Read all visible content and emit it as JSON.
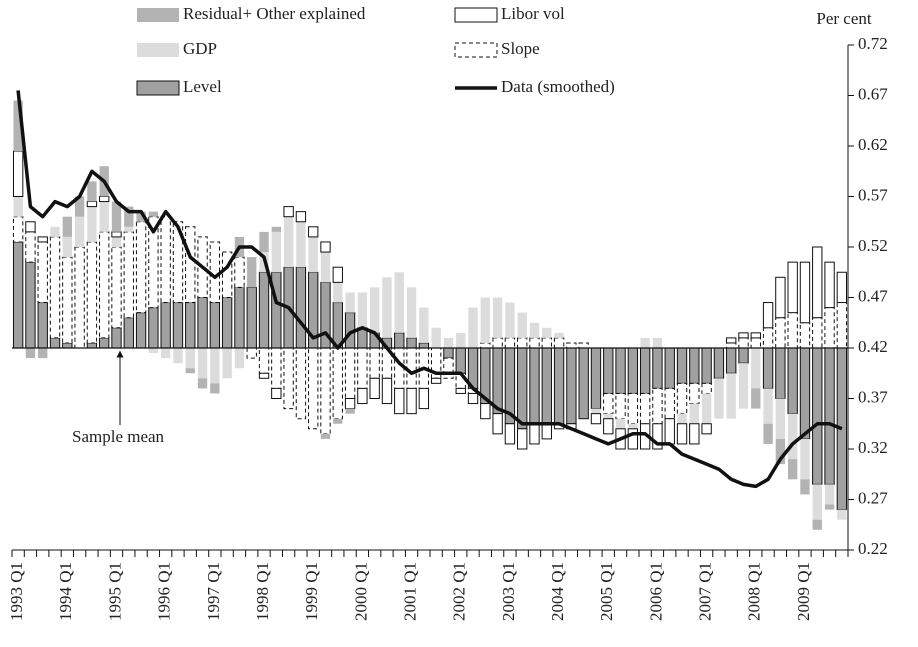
{
  "chart_data": {
    "type": "bar",
    "ylabel": "Per cent",
    "baseline": 0.42,
    "annotations": [
      {
        "text": "Sample mean"
      }
    ],
    "categories": [
      "1993 Q1",
      null,
      null,
      null,
      "1994 Q1",
      null,
      null,
      null,
      "1995 Q1",
      null,
      null,
      null,
      "1996 Q1",
      null,
      null,
      null,
      "1997 Q1",
      null,
      null,
      null,
      "1998 Q1",
      null,
      null,
      null,
      "1999 Q1",
      null,
      null,
      null,
      "2000 Q1",
      null,
      null,
      null,
      "2001 Q1",
      null,
      null,
      null,
      "2002 Q1",
      null,
      null,
      null,
      "2003 Q1",
      null,
      null,
      null,
      "2004 Q1",
      null,
      null,
      null,
      "2005 Q1",
      null,
      null,
      null,
      "2006 Q1",
      null,
      null,
      null,
      "2007 Q1",
      null,
      null,
      null,
      "2008 Q1",
      null,
      null,
      null,
      "2009 Q1",
      null,
      null,
      null
    ],
    "series": [
      {
        "name": "Residual+ Other explained",
        "color": "#b3b3b3",
        "edge": "none",
        "values": [
          0.05,
          -0.01,
          -0.01,
          0,
          0.02,
          0.02,
          0.02,
          0.03,
          0.03,
          0.02,
          0.01,
          0.005,
          0,
          0,
          -0.005,
          -0.01,
          -0.01,
          0,
          0.02,
          0.03,
          0.02,
          0.005,
          0,
          0,
          0,
          -0.005,
          -0.005,
          -0.005,
          0,
          0,
          0,
          0,
          0,
          0,
          0,
          0,
          0,
          0,
          0,
          0,
          0,
          0,
          0,
          0,
          0,
          0,
          0,
          0,
          0,
          0,
          0,
          0,
          0,
          0,
          0,
          0,
          0,
          0,
          0,
          0,
          -0.02,
          -0.02,
          -0.025,
          -0.02,
          -0.015,
          -0.01,
          -0.005,
          0
        ]
      },
      {
        "name": "Libor vol",
        "color": "#ffffff",
        "edge": "solid",
        "values": [
          0.045,
          0.01,
          0.005,
          0,
          0,
          0,
          0.005,
          0.005,
          0.005,
          0,
          0,
          0,
          0,
          0,
          0,
          0,
          0,
          0,
          0,
          0,
          -0.005,
          -0.01,
          0.01,
          0.01,
          0.01,
          0.01,
          0.015,
          -0.01,
          -0.015,
          -0.02,
          -0.025,
          -0.025,
          -0.025,
          -0.02,
          -0.005,
          0,
          -0.005,
          -0.01,
          -0.015,
          -0.02,
          -0.02,
          -0.02,
          -0.02,
          -0.015,
          -0.005,
          -0.005,
          0,
          -0.01,
          -0.015,
          -0.02,
          -0.02,
          -0.025,
          -0.025,
          -0.025,
          -0.02,
          -0.02,
          -0.01,
          0,
          0.005,
          0.005,
          0.005,
          0.025,
          0.04,
          0.05,
          0.06,
          0.07,
          0.045,
          0.03
        ]
      },
      {
        "name": "GDP",
        "color": "#dcdcdc",
        "edge": "none",
        "values": [
          0.02,
          0,
          0,
          0.01,
          0.02,
          0.03,
          0.035,
          0.03,
          0.01,
          0.005,
          0,
          -0.005,
          -0.01,
          -0.015,
          -0.02,
          -0.03,
          -0.035,
          -0.03,
          -0.02,
          0,
          0.02,
          0.04,
          0.05,
          0.045,
          0.035,
          0.03,
          0.02,
          0.02,
          0.035,
          0.045,
          0.06,
          0.06,
          0.05,
          0.035,
          0.02,
          0.01,
          0.015,
          0.04,
          0.045,
          0.04,
          0.035,
          0.025,
          0.015,
          0.01,
          0.005,
          0,
          0,
          -0.005,
          -0.005,
          -0.01,
          -0.005,
          0.01,
          0.01,
          0,
          -0.01,
          -0.02,
          -0.03,
          -0.04,
          -0.045,
          -0.045,
          -0.04,
          -0.035,
          -0.04,
          -0.045,
          -0.04,
          -0.035,
          -0.02,
          -0.01
        ]
      },
      {
        "name": "Slope",
        "color": "#ffffff",
        "edge": "dashed",
        "values": [
          0.025,
          0.03,
          0.06,
          0.1,
          0.085,
          0.1,
          0.1,
          0.105,
          0.08,
          0.085,
          0.09,
          0.09,
          0.085,
          0.08,
          0.075,
          0.06,
          0.06,
          0.045,
          0.03,
          -0.01,
          -0.025,
          -0.04,
          -0.06,
          -0.07,
          -0.08,
          -0.085,
          -0.07,
          -0.05,
          -0.04,
          -0.03,
          -0.03,
          -0.04,
          -0.04,
          -0.04,
          -0.03,
          -0.02,
          -0.015,
          -0.005,
          0.005,
          0.01,
          0.01,
          0.01,
          0.01,
          0.01,
          0.01,
          0.005,
          0.005,
          0,
          -0.02,
          -0.025,
          -0.03,
          -0.03,
          -0.035,
          -0.03,
          -0.03,
          -0.02,
          -0.01,
          0,
          0.005,
          0.01,
          0.01,
          0.02,
          0.03,
          0.035,
          0.025,
          0.03,
          0.04,
          0.045
        ]
      },
      {
        "name": "Level",
        "color": "#a0a0a0",
        "edge": "solid",
        "values": [
          0.105,
          0.085,
          0.045,
          0.01,
          0.005,
          0,
          0.005,
          0.01,
          0.02,
          0.03,
          0.035,
          0.04,
          0.045,
          0.045,
          0.045,
          0.05,
          0.045,
          0.05,
          0.06,
          0.06,
          0.075,
          0.075,
          0.08,
          0.08,
          0.075,
          0.065,
          0.045,
          0.035,
          0.02,
          0.015,
          0.01,
          0.015,
          0.01,
          0.005,
          0,
          -0.01,
          -0.025,
          -0.04,
          -0.055,
          -0.065,
          -0.075,
          -0.08,
          -0.075,
          -0.075,
          -0.075,
          -0.075,
          -0.07,
          -0.06,
          -0.045,
          -0.045,
          -0.045,
          -0.045,
          -0.04,
          -0.04,
          -0.035,
          -0.035,
          -0.035,
          -0.03,
          -0.025,
          -0.015,
          0,
          -0.04,
          -0.05,
          -0.065,
          -0.09,
          -0.135,
          -0.135,
          -0.16
        ]
      },
      {
        "name": "Data (smoothed)",
        "color": "#111111",
        "type": "line",
        "values": [
          0.675,
          0.56,
          0.55,
          0.565,
          0.56,
          0.57,
          0.595,
          0.585,
          0.565,
          0.555,
          0.555,
          0.535,
          0.555,
          0.54,
          0.51,
          0.5,
          0.49,
          0.5,
          0.52,
          0.52,
          0.51,
          0.465,
          0.46,
          0.445,
          0.43,
          0.435,
          0.42,
          0.435,
          0.44,
          0.435,
          0.42,
          0.405,
          0.395,
          0.4,
          0.395,
          0.395,
          0.395,
          0.38,
          0.37,
          0.36,
          0.355,
          0.345,
          0.345,
          0.345,
          0.345,
          0.34,
          0.335,
          0.33,
          0.325,
          0.33,
          0.335,
          0.335,
          0.325,
          0.325,
          0.315,
          0.31,
          0.305,
          0.3,
          0.29,
          0.285,
          0.283,
          0.29,
          0.31,
          0.325,
          0.335,
          0.345,
          0.345,
          0.34
        ]
      }
    ],
    "ylim": [
      0.22,
      0.72
    ],
    "yticks": [
      0.22,
      0.27,
      0.32,
      0.37,
      0.42,
      0.47,
      0.52,
      0.57,
      0.62,
      0.67,
      0.72
    ]
  }
}
